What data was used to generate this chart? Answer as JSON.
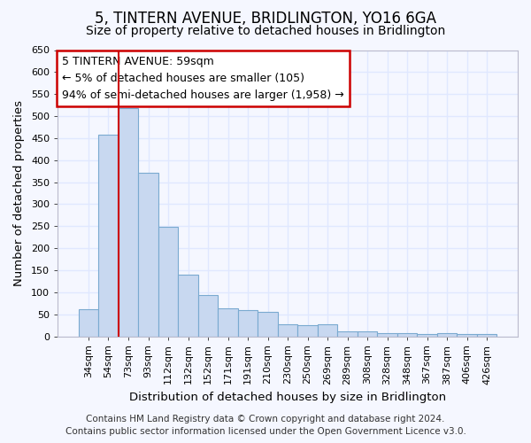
{
  "title": "5, TINTERN AVENUE, BRIDLINGTON, YO16 6GA",
  "subtitle": "Size of property relative to detached houses in Bridlington",
  "xlabel": "Distribution of detached houses by size in Bridlington",
  "ylabel": "Number of detached properties",
  "bar_color": "#c8d8f0",
  "bar_edge_color": "#7aaad0",
  "background_color": "#f5f7ff",
  "grid_color": "#e0e8ff",
  "categories": [
    "34sqm",
    "54sqm",
    "73sqm",
    "93sqm",
    "112sqm",
    "132sqm",
    "152sqm",
    "171sqm",
    "191sqm",
    "210sqm",
    "230sqm",
    "250sqm",
    "269sqm",
    "289sqm",
    "308sqm",
    "328sqm",
    "348sqm",
    "367sqm",
    "387sqm",
    "406sqm",
    "426sqm"
  ],
  "values": [
    62,
    457,
    519,
    371,
    248,
    140,
    93,
    63,
    60,
    56,
    27,
    26,
    27,
    12,
    12,
    8,
    8,
    5,
    8,
    5,
    5
  ],
  "vline_x_index": 1,
  "vline_color": "#cc0000",
  "annotation_title": "5 TINTERN AVENUE: 59sqm",
  "annotation_line1": "← 5% of detached houses are smaller (105)",
  "annotation_line2": "94% of semi-detached houses are larger (1,958) →",
  "annotation_box_color": "#ffffff",
  "annotation_box_edge": "#cc0000",
  "ylim": [
    0,
    650
  ],
  "yticks": [
    0,
    50,
    100,
    150,
    200,
    250,
    300,
    350,
    400,
    450,
    500,
    550,
    600,
    650
  ],
  "footer1": "Contains HM Land Registry data © Crown copyright and database right 2024.",
  "footer2": "Contains public sector information licensed under the Open Government Licence v3.0.",
  "title_fontsize": 12,
  "subtitle_fontsize": 10,
  "axis_label_fontsize": 9.5,
  "tick_fontsize": 8,
  "annotation_fontsize": 9,
  "footer_fontsize": 7.5
}
